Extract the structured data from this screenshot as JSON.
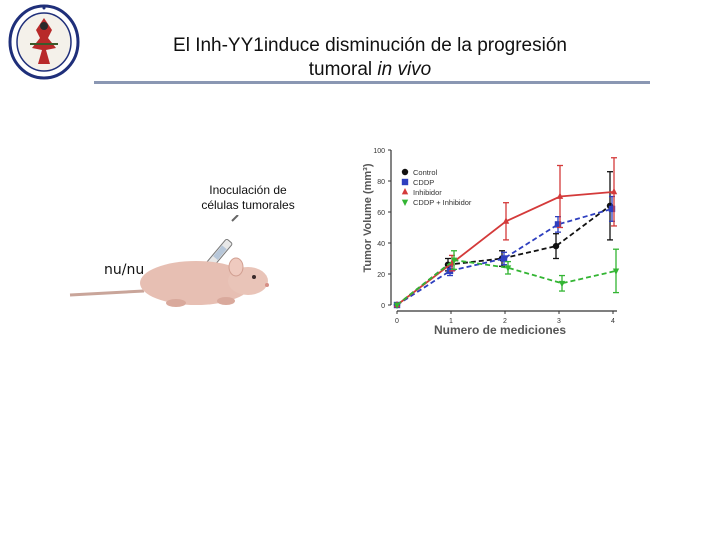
{
  "slide": {
    "title_line1": "El Inh-YY1induce disminución de la progresión",
    "title_line2_plain": "tumoral ",
    "title_line2_italic": "in vivo",
    "inoculation_line1": "Inoculación de",
    "inoculation_line2": "células tumorales",
    "mouse_label": "nu/nu",
    "rule_color": "#8a97b3"
  },
  "chart_data": {
    "type": "line",
    "xlabel": "Numero de mediciones",
    "ylabel": "Tumor Volume (mm³)",
    "x": [
      0,
      1,
      2,
      3,
      4
    ],
    "xlim": [
      0,
      4
    ],
    "ylim": [
      0,
      100
    ],
    "xticks": [
      "0",
      "1",
      "2",
      "3",
      "4"
    ],
    "yticks": [
      "0",
      "20",
      "40",
      "60",
      "80",
      "100"
    ],
    "grid": false,
    "legend_position": "top-left",
    "series": [
      {
        "name": "Control",
        "values": [
          0,
          26,
          30,
          38,
          64
        ],
        "errors": [
          0,
          4,
          5,
          8,
          22
        ],
        "color": "#111111",
        "marker": "circle",
        "dash": "dashed"
      },
      {
        "name": "CDDP",
        "values": [
          0,
          22,
          30,
          52,
          62
        ],
        "errors": [
          0,
          3,
          4,
          5,
          8
        ],
        "color": "#2e3fbf",
        "marker": "square",
        "dash": "dashed"
      },
      {
        "name": "Inhibidor",
        "values": [
          0,
          27,
          54,
          70,
          73
        ],
        "errors": [
          0,
          5,
          12,
          20,
          22
        ],
        "color": "#d43a3a",
        "marker": "triangle-up",
        "dash": "solid"
      },
      {
        "name": "CDDP + Inhibidor",
        "values": [
          0,
          29,
          24,
          14,
          22
        ],
        "errors": [
          0,
          6,
          4,
          5,
          14
        ],
        "color": "#33b533",
        "marker": "triangle-down",
        "dash": "dashed"
      }
    ]
  }
}
